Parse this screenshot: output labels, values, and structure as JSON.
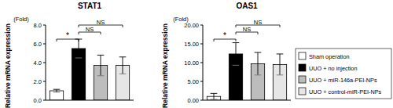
{
  "chart_data": [
    {
      "type": "bar",
      "title": "STAT1",
      "y_label": "Relative mRNA expression",
      "y_unit": "(Fold)",
      "categories": [
        "Sham operation",
        "UUO + no injection",
        "UUO + miR-146a-PEI-NPs",
        "UUO + control-miR-PEI-NPs"
      ],
      "values": [
        1.0,
        5.5,
        3.7,
        3.7
      ],
      "errors": [
        0.15,
        1.0,
        1.1,
        0.9
      ],
      "colors": [
        "#ffffff",
        "#000000",
        "#bdbdbd",
        "#e6e6e6"
      ],
      "ylim": [
        0,
        8
      ],
      "yticks": [
        {
          "value": 0,
          "label": "0.0"
        },
        {
          "value": 2,
          "label": "2.0"
        },
        {
          "value": 4,
          "label": "4.0"
        },
        {
          "value": 6,
          "label": "6.0"
        },
        {
          "value": 8,
          "label": "8.0"
        }
      ],
      "tick_labels": "y",
      "legend": "right",
      "annotations": [
        {
          "text": "*",
          "from": "Sham operation",
          "to": "UUO + no injection"
        },
        {
          "text": "NS",
          "from": "UUO + no injection",
          "to": "UUO + miR-146a-PEI-NPs"
        },
        {
          "text": "NS",
          "from": "UUO + no injection",
          "to": "UUO + control-miR-PEI-NPs"
        }
      ]
    },
    {
      "type": "bar",
      "title": "OAS1",
      "y_label": "Relative mRNA expression",
      "y_unit": "(Fold)",
      "categories": [
        "Sham operation",
        "UUO + no injection",
        "UUO + miR-146a-PEI-NPs",
        "UUO + control-miR-PEI-NPs"
      ],
      "values": [
        1.0,
        12.3,
        9.7,
        9.5
      ],
      "errors": [
        0.8,
        3.0,
        3.0,
        2.8
      ],
      "colors": [
        "#ffffff",
        "#000000",
        "#bdbdbd",
        "#e6e6e6"
      ],
      "ylim": [
        0,
        20
      ],
      "yticks": [
        {
          "value": 0,
          "label": "0.00"
        },
        {
          "value": 5,
          "label": "5.00"
        },
        {
          "value": 10,
          "label": "10.00"
        },
        {
          "value": 15,
          "label": "15.00"
        },
        {
          "value": 20,
          "label": "20.00"
        }
      ],
      "tick_labels": "y",
      "annotations": [
        {
          "text": "*",
          "from": "Sham operation",
          "to": "UUO + no injection"
        },
        {
          "text": "NS",
          "from": "UUO + no injection",
          "to": "UUO + miR-146a-PEI-NPs"
        },
        {
          "text": "NS",
          "from": "UUO + no injection",
          "to": "UUO + control-miR-PEI-NPs"
        }
      ]
    }
  ]
}
